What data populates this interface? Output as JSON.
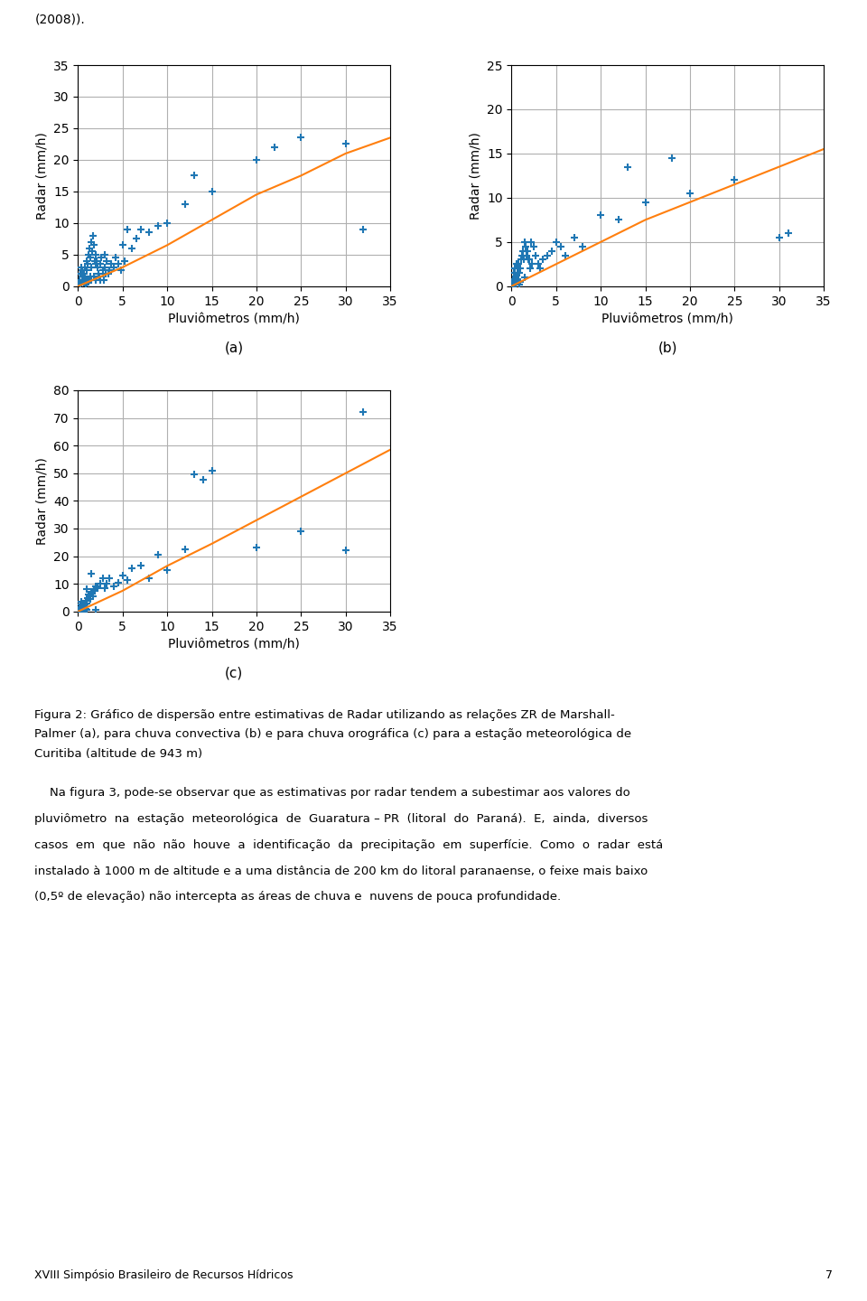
{
  "chart_data": [
    {
      "type": "scatter",
      "title": "(a)",
      "x_label": "Pluviômetros (mm/h)",
      "y_label": "Radar (mm/h)",
      "xlim": [
        0,
        35
      ],
      "xticks": [
        0,
        5,
        10,
        15,
        20,
        25,
        30,
        35
      ],
      "ylim": [
        0,
        35
      ],
      "yticks": [
        0,
        5,
        10,
        15,
        20,
        25,
        30,
        35
      ],
      "grid": true,
      "series": [
        {
          "type": "scatter",
          "marker": "+",
          "x": [
            0.1,
            0.2,
            0.3,
            0.3,
            0.4,
            0.4,
            0.5,
            0.5,
            0.5,
            0.6,
            0.7,
            0.7,
            0.8,
            0.8,
            0.8,
            0.9,
            0.9,
            1.0,
            1.0,
            1.0,
            1.1,
            1.1,
            1.2,
            1.2,
            1.3,
            1.4,
            1.4,
            1.5,
            1.5,
            1.5,
            1.6,
            1.7,
            1.8,
            1.8,
            1.9,
            2.0,
            2.0,
            2.0,
            2.1,
            2.2,
            2.3,
            2.4,
            2.5,
            2.5,
            2.6,
            2.8,
            2.9,
            3.0,
            3.0,
            3.1,
            3.2,
            3.4,
            3.5,
            3.7,
            4.0,
            4.2,
            4.5,
            4.8,
            5.0,
            5.2,
            5.5,
            6.0,
            6.5,
            7.0,
            8.0,
            9.0,
            10.0,
            12.0,
            13.0,
            15.0,
            20.0,
            22.0,
            25.0,
            30.0,
            32.0
          ],
          "values": [
            0.5,
            1.0,
            2.0,
            0.3,
            3.0,
            0.5,
            1.5,
            2.5,
            0.8,
            1.0,
            2.0,
            0.5,
            3.0,
            1.5,
            0.5,
            1.0,
            0.2,
            2.5,
            4.0,
            0.5,
            3.5,
            1.0,
            5.0,
            0.8,
            6.0,
            4.5,
            1.5,
            3.0,
            7.0,
            1.0,
            5.5,
            8.0,
            6.5,
            1.5,
            4.0,
            3.5,
            5.0,
            1.0,
            4.0,
            3.0,
            2.0,
            1.5,
            3.5,
            1.0,
            4.5,
            2.5,
            1.0,
            3.0,
            5.0,
            2.0,
            4.0,
            2.0,
            2.5,
            3.5,
            3.0,
            4.5,
            3.5,
            2.5,
            6.5,
            4.0,
            9.0,
            6.0,
            7.5,
            9.0,
            8.5,
            9.5,
            10.0,
            13.0,
            17.5,
            15.0,
            20.0,
            22.0,
            23.5,
            22.5,
            9.0
          ]
        },
        {
          "type": "line",
          "line_style": "solid",
          "x": [
            0,
            5,
            10,
            15,
            20,
            25,
            30,
            35
          ],
          "values": [
            0,
            3.0,
            6.5,
            10.5,
            14.5,
            17.5,
            21.0,
            23.5
          ]
        }
      ]
    },
    {
      "type": "scatter",
      "title": "(b)",
      "x_label": "Pluviômetros (mm/h)",
      "y_label": "Radar (mm/h)",
      "xlim": [
        0,
        35
      ],
      "xticks": [
        0,
        5,
        10,
        15,
        20,
        25,
        30,
        35
      ],
      "ylim": [
        0,
        25
      ],
      "yticks": [
        0,
        5,
        10,
        15,
        20,
        25
      ],
      "grid": true,
      "series": [
        {
          "type": "scatter",
          "marker": "+",
          "x": [
            0.1,
            0.2,
            0.3,
            0.3,
            0.4,
            0.4,
            0.5,
            0.5,
            0.6,
            0.6,
            0.7,
            0.8,
            0.8,
            0.9,
            0.9,
            1.0,
            1.0,
            1.1,
            1.2,
            1.3,
            1.4,
            1.5,
            1.5,
            1.6,
            1.7,
            1.8,
            1.9,
            2.0,
            2.1,
            2.2,
            2.3,
            2.5,
            2.7,
            3.0,
            3.2,
            3.5,
            4.0,
            4.5,
            5.0,
            5.5,
            6.0,
            7.0,
            8.0,
            10.0,
            12.0,
            13.0,
            15.0,
            18.0,
            20.0,
            25.0,
            30.0,
            31.0
          ],
          "values": [
            0.3,
            0.8,
            1.5,
            0.3,
            2.0,
            0.5,
            1.0,
            0.2,
            2.5,
            0.5,
            1.5,
            2.5,
            0.5,
            1.5,
            0.2,
            2.0,
            0.5,
            3.0,
            3.5,
            4.0,
            3.0,
            5.0,
            1.0,
            4.5,
            3.5,
            4.0,
            3.0,
            3.0,
            2.0,
            5.0,
            2.5,
            4.5,
            3.5,
            2.5,
            2.0,
            3.0,
            3.5,
            4.0,
            5.0,
            4.5,
            3.5,
            5.5,
            4.5,
            8.0,
            7.5,
            13.5,
            9.5,
            14.5,
            10.5,
            12.0,
            5.5,
            6.0
          ]
        },
        {
          "type": "line",
          "line_style": "solid",
          "x": [
            0,
            5,
            10,
            15,
            20,
            25,
            30,
            35
          ],
          "values": [
            0,
            2.5,
            5.0,
            7.5,
            9.5,
            11.5,
            13.5,
            15.5
          ]
        }
      ]
    },
    {
      "type": "scatter",
      "title": "(c)",
      "x_label": "Pluviômetros (mm/h)",
      "y_label": "Radar (mm/h)",
      "xlim": [
        0,
        35
      ],
      "xticks": [
        0,
        5,
        10,
        15,
        20,
        25,
        30,
        35
      ],
      "ylim": [
        0,
        80
      ],
      "yticks": [
        0,
        10,
        20,
        30,
        40,
        50,
        60,
        70,
        80
      ],
      "grid": true,
      "series": [
        {
          "type": "scatter",
          "marker": "+",
          "x": [
            0.1,
            0.2,
            0.2,
            0.3,
            0.3,
            0.4,
            0.4,
            0.5,
            0.5,
            0.6,
            0.6,
            0.7,
            0.7,
            0.8,
            0.8,
            0.9,
            0.9,
            1.0,
            1.0,
            1.0,
            1.1,
            1.2,
            1.3,
            1.4,
            1.5,
            1.5,
            1.6,
            1.7,
            1.8,
            1.9,
            2.0,
            2.0,
            2.2,
            2.5,
            2.8,
            3.0,
            3.2,
            3.5,
            4.0,
            4.5,
            5.0,
            5.5,
            6.0,
            7.0,
            8.0,
            9.0,
            10.0,
            12.0,
            13.0,
            14.0,
            15.0,
            20.0,
            25.0,
            30.0,
            32.0
          ],
          "values": [
            0.5,
            1.5,
            0.5,
            2.5,
            0.3,
            3.5,
            0.8,
            2.0,
            0.5,
            3.0,
            0.8,
            1.5,
            0.3,
            2.5,
            0.5,
            4.0,
            1.0,
            3.0,
            8.0,
            0.5,
            5.0,
            6.0,
            5.5,
            4.5,
            7.0,
            13.5,
            6.5,
            5.5,
            8.0,
            7.5,
            9.0,
            0.5,
            8.5,
            10.0,
            12.0,
            8.5,
            10.0,
            12.0,
            9.0,
            10.5,
            13.0,
            11.5,
            15.5,
            16.5,
            12.0,
            20.5,
            15.0,
            22.5,
            49.5,
            47.5,
            51.0,
            23.0,
            29.0,
            22.0,
            72.0
          ]
        },
        {
          "type": "line",
          "line_style": "solid",
          "x": [
            0,
            5,
            10,
            15,
            20,
            25,
            30,
            35
          ],
          "values": [
            0,
            7.5,
            16.5,
            24.5,
            33.0,
            41.5,
            50.0,
            58.5
          ]
        }
      ]
    }
  ],
  "header": "(2008)).",
  "caption_lines": [
    "Figura 2: Gráfico de dispersão entre estimativas de Radar utilizando as relações ZR de Marshall-",
    "Palmer (a), para chuva convectiva (b) e para chuva orográfica (c) para a estação meteorológica de",
    "Curitiba (altitude de 943 m)"
  ],
  "paragraph_lines": [
    "    Na figura 3, pode-se observar que as estimativas por radar tendem a subestimar aos valores do",
    "pluviômetro  na  estação  meteorológica  de  Guaratura – PR  (litoral  do  Paraná).  E,  ainda,  diversos",
    "casos  em  que  não  não  houve  a  identificação  da  precipitação  em  superfície.  Como  o  radar  está",
    "instalado à 1000 m de altitude e a uma distância de 200 km do litoral paranaense, o feixe mais baixo",
    "(0,5º de elevação) não intercepta as áreas de chuva e  nuvens de pouca profundidade."
  ],
  "footer_left": "XVIII Simpósio Brasileiro de Recursos Hídricos",
  "footer_right": "7"
}
